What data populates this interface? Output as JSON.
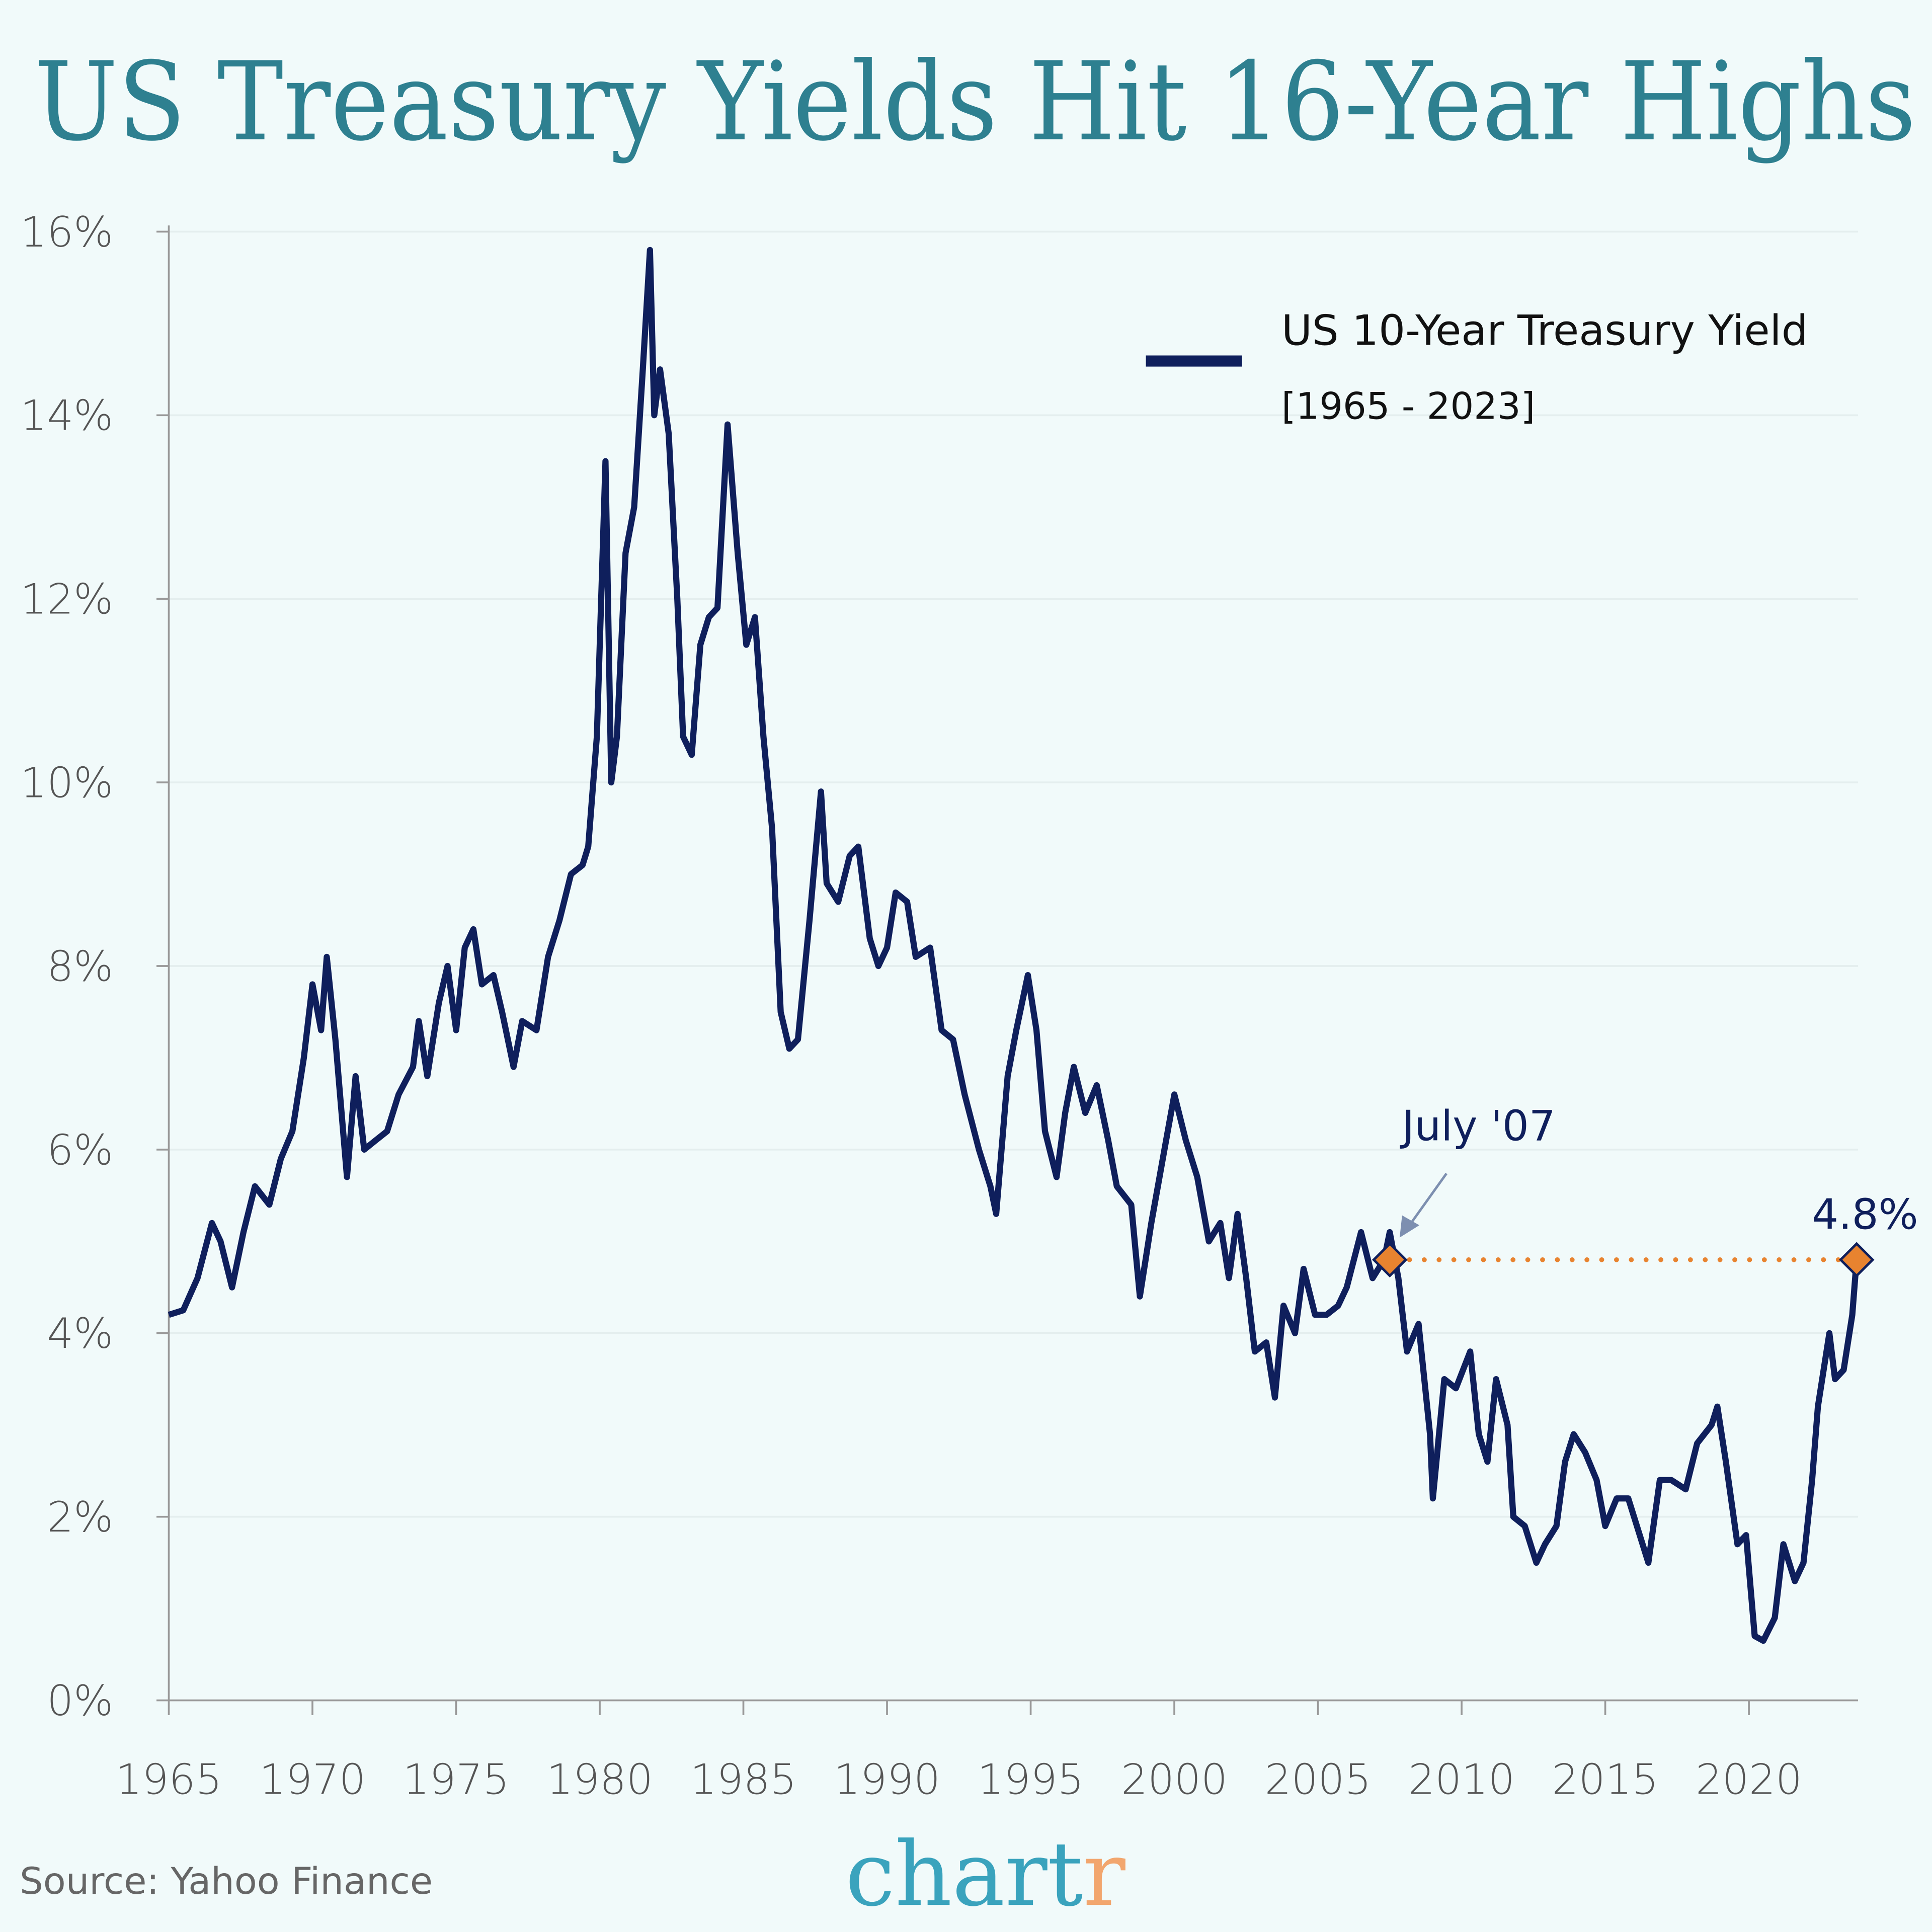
{
  "title": "US Treasury Yields Hit 16-Year Highs",
  "source": "Source: Yahoo Finance",
  "logo": {
    "main": "chart",
    "accent": "r",
    "main_color": "#3aa3bd",
    "accent_color": "#f2a66e"
  },
  "colors": {
    "background": "#f1fafa",
    "title": "#2e8090",
    "line": "#0f1f5c",
    "highlight": "#e8832f"
  },
  "chart_data": {
    "type": "line",
    "title": "US Treasury Yields Hit 16-Year Highs",
    "xlabel": "",
    "ylabel": "",
    "xlim": [
      1965,
      2023.8
    ],
    "ylim": [
      0,
      16
    ],
    "grid": "horizontal",
    "legend_position": "top-right",
    "x_ticks": [
      "1965",
      "1970",
      "1975",
      "1980",
      "1985",
      "1990",
      "1995",
      "2000",
      "2005",
      "2010",
      "2015",
      "2020"
    ],
    "y_ticks": [
      "0%",
      "2%",
      "4%",
      "6%",
      "8%",
      "10%",
      "12%",
      "14%",
      "16%"
    ],
    "series": [
      {
        "name": "US 10-Year Treasury Yield",
        "subtitle": "[1965 - 2023]",
        "points": [
          [
            1965.0,
            4.2
          ],
          [
            1965.5,
            4.25
          ],
          [
            1966.0,
            4.6
          ],
          [
            1966.5,
            5.2
          ],
          [
            1966.8,
            5.0
          ],
          [
            1967.2,
            4.5
          ],
          [
            1967.6,
            5.1
          ],
          [
            1968.0,
            5.6
          ],
          [
            1968.5,
            5.4
          ],
          [
            1968.9,
            5.9
          ],
          [
            1969.3,
            6.2
          ],
          [
            1969.7,
            7.0
          ],
          [
            1970.0,
            7.8
          ],
          [
            1970.3,
            7.3
          ],
          [
            1970.5,
            8.1
          ],
          [
            1970.8,
            7.2
          ],
          [
            1971.2,
            5.7
          ],
          [
            1971.5,
            6.8
          ],
          [
            1971.8,
            6.0
          ],
          [
            1972.2,
            6.1
          ],
          [
            1972.6,
            6.2
          ],
          [
            1973.0,
            6.6
          ],
          [
            1973.5,
            6.9
          ],
          [
            1973.7,
            7.4
          ],
          [
            1974.0,
            6.8
          ],
          [
            1974.4,
            7.6
          ],
          [
            1974.7,
            8.0
          ],
          [
            1975.0,
            7.3
          ],
          [
            1975.3,
            8.2
          ],
          [
            1975.6,
            8.4
          ],
          [
            1975.9,
            7.8
          ],
          [
            1976.3,
            7.9
          ],
          [
            1976.6,
            7.5
          ],
          [
            1977.0,
            6.9
          ],
          [
            1977.3,
            7.4
          ],
          [
            1977.8,
            7.3
          ],
          [
            1978.2,
            8.1
          ],
          [
            1978.6,
            8.5
          ],
          [
            1979.0,
            9.0
          ],
          [
            1979.4,
            9.1
          ],
          [
            1979.6,
            9.3
          ],
          [
            1979.9,
            10.5
          ],
          [
            1980.1,
            12.5
          ],
          [
            1980.2,
            13.5
          ],
          [
            1980.4,
            10.0
          ],
          [
            1980.6,
            10.5
          ],
          [
            1980.9,
            12.5
          ],
          [
            1981.2,
            13.0
          ],
          [
            1981.5,
            14.5
          ],
          [
            1981.75,
            15.8
          ],
          [
            1981.9,
            14.0
          ],
          [
            1982.1,
            14.5
          ],
          [
            1982.4,
            13.8
          ],
          [
            1982.7,
            12.0
          ],
          [
            1982.9,
            10.5
          ],
          [
            1983.2,
            10.3
          ],
          [
            1983.5,
            11.5
          ],
          [
            1983.8,
            11.8
          ],
          [
            1984.1,
            11.9
          ],
          [
            1984.45,
            13.9
          ],
          [
            1984.8,
            12.5
          ],
          [
            1985.1,
            11.5
          ],
          [
            1985.4,
            11.8
          ],
          [
            1985.7,
            10.5
          ],
          [
            1986.0,
            9.5
          ],
          [
            1986.3,
            7.5
          ],
          [
            1986.6,
            7.1
          ],
          [
            1986.9,
            7.2
          ],
          [
            1987.3,
            8.5
          ],
          [
            1987.7,
            9.9
          ],
          [
            1987.9,
            8.9
          ],
          [
            1988.3,
            8.7
          ],
          [
            1988.7,
            9.2
          ],
          [
            1989.0,
            9.3
          ],
          [
            1989.4,
            8.3
          ],
          [
            1989.7,
            8.0
          ],
          [
            1990.0,
            8.2
          ],
          [
            1990.3,
            8.8
          ],
          [
            1990.7,
            8.7
          ],
          [
            1991.0,
            8.1
          ],
          [
            1991.5,
            8.2
          ],
          [
            1991.9,
            7.3
          ],
          [
            1992.3,
            7.2
          ],
          [
            1992.7,
            6.6
          ],
          [
            1993.2,
            6.0
          ],
          [
            1993.6,
            5.6
          ],
          [
            1993.8,
            5.3
          ],
          [
            1994.2,
            6.8
          ],
          [
            1994.5,
            7.3
          ],
          [
            1994.9,
            7.9
          ],
          [
            1995.2,
            7.3
          ],
          [
            1995.5,
            6.2
          ],
          [
            1995.9,
            5.7
          ],
          [
            1996.2,
            6.4
          ],
          [
            1996.5,
            6.9
          ],
          [
            1996.9,
            6.4
          ],
          [
            1997.3,
            6.7
          ],
          [
            1997.7,
            6.1
          ],
          [
            1998.0,
            5.6
          ],
          [
            1998.5,
            5.4
          ],
          [
            1998.8,
            4.4
          ],
          [
            1999.2,
            5.2
          ],
          [
            1999.6,
            5.9
          ],
          [
            2000.0,
            6.6
          ],
          [
            2000.4,
            6.1
          ],
          [
            2000.8,
            5.7
          ],
          [
            2001.2,
            5.0
          ],
          [
            2001.6,
            5.2
          ],
          [
            2001.9,
            4.6
          ],
          [
            2002.2,
            5.3
          ],
          [
            2002.5,
            4.6
          ],
          [
            2002.8,
            3.8
          ],
          [
            2003.2,
            3.9
          ],
          [
            2003.5,
            3.3
          ],
          [
            2003.8,
            4.3
          ],
          [
            2004.2,
            4.0
          ],
          [
            2004.5,
            4.7
          ],
          [
            2004.9,
            4.2
          ],
          [
            2005.3,
            4.2
          ],
          [
            2005.7,
            4.3
          ],
          [
            2006.0,
            4.5
          ],
          [
            2006.5,
            5.1
          ],
          [
            2006.9,
            4.6
          ],
          [
            2007.3,
            4.8
          ],
          [
            2007.5,
            5.1
          ],
          [
            2007.8,
            4.6
          ],
          [
            2008.1,
            3.8
          ],
          [
            2008.5,
            4.1
          ],
          [
            2008.9,
            2.9
          ],
          [
            2009.0,
            2.2
          ],
          [
            2009.4,
            3.5
          ],
          [
            2009.8,
            3.4
          ],
          [
            2010.3,
            3.8
          ],
          [
            2010.6,
            2.9
          ],
          [
            2010.9,
            2.6
          ],
          [
            2011.2,
            3.5
          ],
          [
            2011.6,
            3.0
          ],
          [
            2011.8,
            2.0
          ],
          [
            2012.2,
            1.9
          ],
          [
            2012.6,
            1.5
          ],
          [
            2012.9,
            1.7
          ],
          [
            2013.3,
            1.9
          ],
          [
            2013.6,
            2.6
          ],
          [
            2013.9,
            2.9
          ],
          [
            2014.3,
            2.7
          ],
          [
            2014.7,
            2.4
          ],
          [
            2015.0,
            1.9
          ],
          [
            2015.4,
            2.2
          ],
          [
            2015.8,
            2.2
          ],
          [
            2016.2,
            1.8
          ],
          [
            2016.5,
            1.5
          ],
          [
            2016.9,
            2.4
          ],
          [
            2017.3,
            2.4
          ],
          [
            2017.8,
            2.3
          ],
          [
            2018.2,
            2.8
          ],
          [
            2018.7,
            3.0
          ],
          [
            2018.9,
            3.2
          ],
          [
            2019.2,
            2.6
          ],
          [
            2019.6,
            1.7
          ],
          [
            2019.9,
            1.8
          ],
          [
            2020.2,
            0.7
          ],
          [
            2020.5,
            0.65
          ],
          [
            2020.9,
            0.9
          ],
          [
            2021.2,
            1.7
          ],
          [
            2021.6,
            1.3
          ],
          [
            2021.9,
            1.5
          ],
          [
            2022.2,
            2.4
          ],
          [
            2022.4,
            3.2
          ],
          [
            2022.8,
            4.0
          ],
          [
            2023.0,
            3.5
          ],
          [
            2023.3,
            3.6
          ],
          [
            2023.6,
            4.2
          ],
          [
            2023.75,
            4.8
          ]
        ]
      }
    ],
    "annotations": [
      {
        "label": "July '07",
        "x": 2007.5,
        "y": 4.8
      },
      {
        "label": "4.8%",
        "x": 2023.75,
        "y": 4.8
      }
    ]
  }
}
